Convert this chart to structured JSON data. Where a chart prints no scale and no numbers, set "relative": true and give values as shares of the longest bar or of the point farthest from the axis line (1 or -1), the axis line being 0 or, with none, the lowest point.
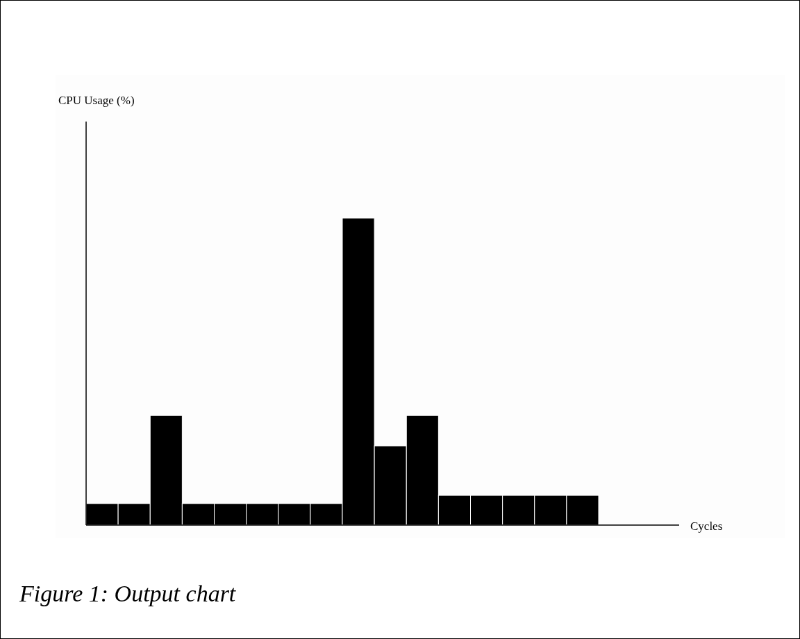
{
  "chart_data": {
    "type": "bar",
    "relative": true,
    "categories": [
      null,
      null,
      null,
      null,
      null,
      null,
      null,
      null,
      null,
      null,
      null,
      null,
      null,
      null,
      null,
      null
    ],
    "values": [
      0.07,
      0.07,
      0.357,
      0.07,
      0.07,
      0.07,
      0.07,
      0.07,
      1,
      0.258,
      0.357,
      0.097,
      0.097,
      0.097,
      0.097,
      0.097
    ],
    "color": "#000000",
    "annotations": [
      "CPU  Usage (%)",
      "Cycles",
      "Figure 1: Output chart"
    ]
  }
}
